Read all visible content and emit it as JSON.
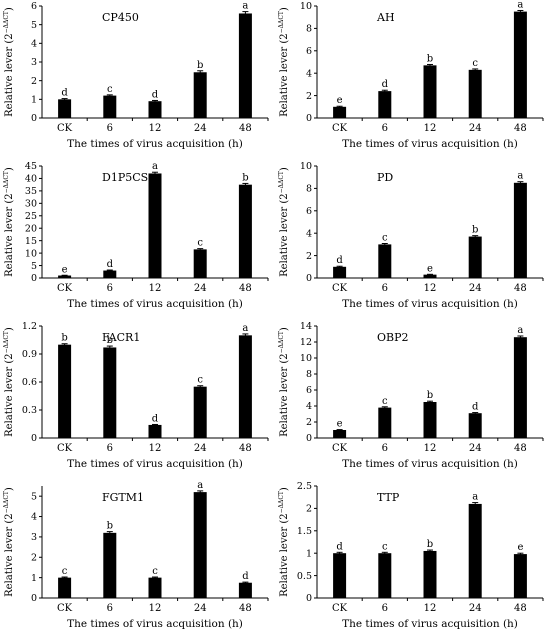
{
  "chart_data": [
    {
      "type": "bar",
      "title": "CP450",
      "xlabel": "The times of virus acquisition (h)",
      "ylabel": "Relative lever (2",
      "ylabel_sup": "−ΔΔCT",
      "ylabel_close": ")",
      "categories": [
        "CK",
        "6",
        "12",
        "24",
        "48"
      ],
      "values": [
        1.0,
        1.2,
        0.9,
        2.45,
        5.6
      ],
      "errors": [
        0.04,
        0.04,
        0.04,
        0.08,
        0.1
      ],
      "letters": [
        "d",
        "c",
        "d",
        "b",
        "a"
      ],
      "ylim": [
        0,
        6
      ],
      "yticks": [
        "0",
        "1",
        "2",
        "3",
        "4",
        "5",
        "6"
      ]
    },
    {
      "type": "bar",
      "title": "AH",
      "xlabel": "The times of virus acquisition (h)",
      "ylabel": "Relative lever (2",
      "ylabel_sup": "−ΔΔCT",
      "ylabel_close": ")",
      "categories": [
        "CK",
        "6",
        "12",
        "24",
        "48"
      ],
      "values": [
        1.0,
        2.4,
        4.7,
        4.3,
        9.5
      ],
      "errors": [
        0.05,
        0.08,
        0.08,
        0.08,
        0.1
      ],
      "letters": [
        "e",
        "d",
        "b",
        "c",
        "a"
      ],
      "ylim": [
        0,
        10
      ],
      "yticks": [
        "0",
        "2",
        "4",
        "6",
        "8",
        "10"
      ]
    },
    {
      "type": "bar",
      "title": "D1P5CS",
      "xlabel": "The times of virus acquisition (h)",
      "ylabel": "Relative lever (2",
      "ylabel_sup": "−ΔΔCT",
      "ylabel_close": ")",
      "categories": [
        "CK",
        "6",
        "12",
        "24",
        "48"
      ],
      "values": [
        1.0,
        3.0,
        42.0,
        11.5,
        37.5
      ],
      "errors": [
        0.1,
        0.2,
        0.5,
        0.3,
        0.5
      ],
      "letters": [
        "e",
        "d",
        "a",
        "c",
        "b"
      ],
      "ylim": [
        0,
        45
      ],
      "yticks": [
        "0",
        "5",
        "10",
        "15",
        "20",
        "25",
        "30",
        "35",
        "40",
        "45"
      ]
    },
    {
      "type": "bar",
      "title": "PD",
      "xlabel": "The times of virus acquisition (h)",
      "ylabel": "Relative lever (2",
      "ylabel_sup": "−ΔΔCT",
      "ylabel_close": ")",
      "categories": [
        "CK",
        "6",
        "12",
        "24",
        "48"
      ],
      "values": [
        1.0,
        3.0,
        0.3,
        3.7,
        8.5
      ],
      "errors": [
        0.05,
        0.08,
        0.03,
        0.08,
        0.1
      ],
      "letters": [
        "d",
        "c",
        "e",
        "b",
        "a"
      ],
      "ylim": [
        0,
        10
      ],
      "yticks": [
        "0",
        "2",
        "4",
        "6",
        "8",
        "10"
      ]
    },
    {
      "type": "bar",
      "title": "FACR1",
      "xlabel": "The times of virus acquisition (h)",
      "ylabel": "Relative lever (2",
      "ylabel_sup": "−ΔΔCT",
      "ylabel_close": ")",
      "categories": [
        "CK",
        "6",
        "12",
        "24",
        "48"
      ],
      "values": [
        1.0,
        0.97,
        0.14,
        0.55,
        1.1
      ],
      "errors": [
        0.01,
        0.015,
        0.005,
        0.01,
        0.015
      ],
      "letters": [
        "b",
        "b",
        "d",
        "c",
        "a"
      ],
      "ylim": [
        0,
        1.2
      ],
      "yticks": [
        "0",
        "0.3",
        "0.6",
        "0.9",
        "1.2"
      ]
    },
    {
      "type": "bar",
      "title": "OBP2",
      "xlabel": "The times of virus acquisition (h)",
      "ylabel": "Relative lever (2",
      "ylabel_sup": "−ΔΔCT",
      "ylabel_close": ")",
      "categories": [
        "CK",
        "6",
        "12",
        "24",
        "48"
      ],
      "values": [
        1.0,
        3.8,
        4.5,
        3.1,
        12.6
      ],
      "errors": [
        0.05,
        0.1,
        0.1,
        0.08,
        0.15
      ],
      "letters": [
        "e",
        "c",
        "b",
        "d",
        "a"
      ],
      "ylim": [
        0,
        14
      ],
      "yticks": [
        "0",
        "2",
        "4",
        "6",
        "8",
        "10",
        "12",
        "14"
      ]
    },
    {
      "type": "bar",
      "title": "FGTM1",
      "xlabel": "The times of virus acquisition (h)",
      "ylabel": "Relative lever (2",
      "ylabel_sup": "−ΔΔCT",
      "ylabel_close": ")",
      "categories": [
        "CK",
        "6",
        "12",
        "24",
        "48"
      ],
      "values": [
        1.0,
        3.2,
        1.0,
        5.2,
        0.75
      ],
      "errors": [
        0.03,
        0.06,
        0.03,
        0.06,
        0.03
      ],
      "letters": [
        "c",
        "b",
        "c",
        "a",
        "d"
      ],
      "ylim": [
        0,
        5.5
      ],
      "yticks": [
        "0",
        "1",
        "2",
        "3",
        "4",
        "5"
      ],
      "ytick_values": [
        0,
        1,
        2,
        3,
        4,
        5
      ]
    },
    {
      "type": "bar",
      "title": "TTP",
      "xlabel": "The times of virus acquisition (h)",
      "ylabel": "Relative lever (2",
      "ylabel_sup": "−ΔΔCT",
      "ylabel_close": ")",
      "categories": [
        "CK",
        "6",
        "12",
        "24",
        "48"
      ],
      "values": [
        1.0,
        1.0,
        1.05,
        2.1,
        0.98
      ],
      "errors": [
        0.02,
        0.02,
        0.02,
        0.03,
        0.02
      ],
      "letters": [
        "d",
        "c",
        "b",
        "a",
        "e"
      ],
      "ylim": [
        0,
        2.5
      ],
      "yticks": [
        "0",
        "0.5",
        "1",
        "1.5",
        "2",
        "2.5"
      ]
    }
  ]
}
